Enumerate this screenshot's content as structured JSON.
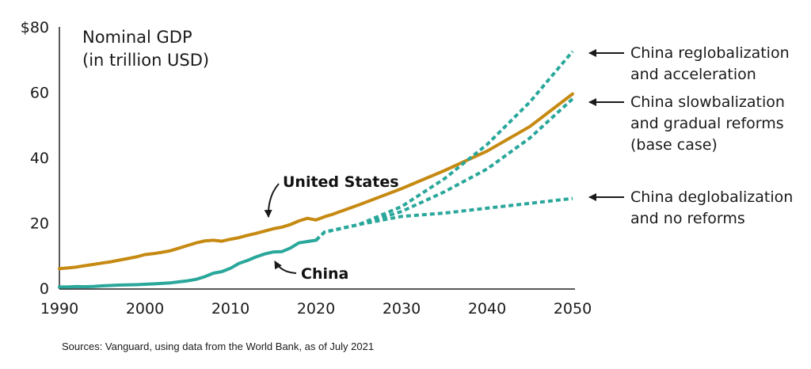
{
  "chart_data": {
    "type": "line",
    "title": "Nominal GDP",
    "subtitle": "(in trillion USD)",
    "xlim": [
      1990,
      2050
    ],
    "ylim": [
      0,
      80
    ],
    "x_ticks": [
      "1990",
      "2000",
      "2010",
      "2020",
      "2030",
      "2040",
      "2050"
    ],
    "y_ticks": [
      "0",
      "20",
      "40",
      "60",
      "$80"
    ],
    "grid": false,
    "colors": {
      "us": "#c68a12",
      "china": "#2aa79b",
      "text": "#1a1a1a",
      "axis": "#222222"
    },
    "series": [
      {
        "name": "United States",
        "style": "solid",
        "color": "#c68a12",
        "points": [
          [
            1990,
            6
          ],
          [
            1991,
            6.2
          ],
          [
            1992,
            6.5
          ],
          [
            1993,
            6.9
          ],
          [
            1994,
            7.3
          ],
          [
            1995,
            7.7
          ],
          [
            1996,
            8.1
          ],
          [
            1997,
            8.6
          ],
          [
            1998,
            9.1
          ],
          [
            1999,
            9.6
          ],
          [
            2000,
            10.3
          ],
          [
            2001,
            10.6
          ],
          [
            2002,
            11
          ],
          [
            2003,
            11.5
          ],
          [
            2004,
            12.3
          ],
          [
            2005,
            13.1
          ],
          [
            2006,
            13.9
          ],
          [
            2007,
            14.5
          ],
          [
            2008,
            14.7
          ],
          [
            2009,
            14.4
          ],
          [
            2010,
            15
          ],
          [
            2011,
            15.5
          ],
          [
            2012,
            16.2
          ],
          [
            2013,
            16.8
          ],
          [
            2014,
            17.5
          ],
          [
            2015,
            18.2
          ],
          [
            2016,
            18.7
          ],
          [
            2017,
            19.5
          ],
          [
            2018,
            20.6
          ],
          [
            2019,
            21.4
          ],
          [
            2020,
            20.9
          ],
          [
            2021,
            21.9
          ],
          [
            2022,
            22.7
          ],
          [
            2025,
            25.5
          ],
          [
            2030,
            30.5
          ],
          [
            2035,
            36
          ],
          [
            2040,
            42
          ],
          [
            2045,
            49.5
          ],
          [
            2050,
            59.5
          ]
        ]
      },
      {
        "name": "China",
        "style": "solid",
        "color": "#2aa79b",
        "points": [
          [
            1990,
            0.4
          ],
          [
            1991,
            0.4
          ],
          [
            1992,
            0.5
          ],
          [
            1993,
            0.45
          ],
          [
            1994,
            0.56
          ],
          [
            1995,
            0.73
          ],
          [
            1996,
            0.86
          ],
          [
            1997,
            0.96
          ],
          [
            1998,
            1.03
          ],
          [
            1999,
            1.09
          ],
          [
            2000,
            1.21
          ],
          [
            2001,
            1.34
          ],
          [
            2002,
            1.47
          ],
          [
            2003,
            1.66
          ],
          [
            2004,
            1.96
          ],
          [
            2005,
            2.29
          ],
          [
            2006,
            2.75
          ],
          [
            2007,
            3.55
          ],
          [
            2008,
            4.6
          ],
          [
            2009,
            5.1
          ],
          [
            2010,
            6.1
          ],
          [
            2011,
            7.6
          ],
          [
            2012,
            8.5
          ],
          [
            2013,
            9.6
          ],
          [
            2014,
            10.5
          ],
          [
            2015,
            11.1
          ],
          [
            2016,
            11.2
          ],
          [
            2017,
            12.3
          ],
          [
            2018,
            13.9
          ],
          [
            2019,
            14.3
          ],
          [
            2020,
            14.7
          ]
        ]
      },
      {
        "name": "China reglobalization and acceleration",
        "style": "dashed",
        "color": "#2aa79b",
        "points": [
          [
            2020,
            14.7
          ],
          [
            2021,
            17.2
          ],
          [
            2025,
            19.5
          ],
          [
            2030,
            25
          ],
          [
            2035,
            33.5
          ],
          [
            2040,
            44
          ],
          [
            2045,
            57
          ],
          [
            2050,
            72.5
          ]
        ]
      },
      {
        "name": "China slowbalization and gradual reforms (base case)",
        "style": "dashed",
        "color": "#2aa79b",
        "points": [
          [
            2020,
            14.7
          ],
          [
            2021,
            17.2
          ],
          [
            2025,
            19.5
          ],
          [
            2030,
            23.5
          ],
          [
            2035,
            29.5
          ],
          [
            2040,
            36.5
          ],
          [
            2045,
            46
          ],
          [
            2050,
            58
          ]
        ]
      },
      {
        "name": "China deglobalization and no reforms",
        "style": "dashed",
        "color": "#2aa79b",
        "points": [
          [
            2020,
            14.7
          ],
          [
            2021,
            17.2
          ],
          [
            2025,
            19.5
          ],
          [
            2030,
            22
          ],
          [
            2035,
            23
          ],
          [
            2040,
            24.5
          ],
          [
            2045,
            26
          ],
          [
            2050,
            27.5
          ]
        ]
      }
    ],
    "series_labels": [
      {
        "name": "United States",
        "text": "United States",
        "x": 2015,
        "y": 33
      },
      {
        "name": "China",
        "text": "China",
        "x": 2019,
        "y": 4
      }
    ],
    "annotations": [
      {
        "lines": [
          "China reglobalization",
          "and acceleration"
        ],
        "arrow_to": [
          2052,
          72
        ]
      },
      {
        "lines": [
          "China slowbalization",
          "and gradual reforms",
          "(base case)"
        ],
        "arrow_to": [
          2052,
          57.5
        ]
      },
      {
        "lines": [
          "China deglobalization",
          "and no reforms"
        ],
        "arrow_to": [
          2052,
          27.5
        ]
      }
    ],
    "source": "Sources: Vanguard, using data from the World Bank, as of July 2021"
  }
}
